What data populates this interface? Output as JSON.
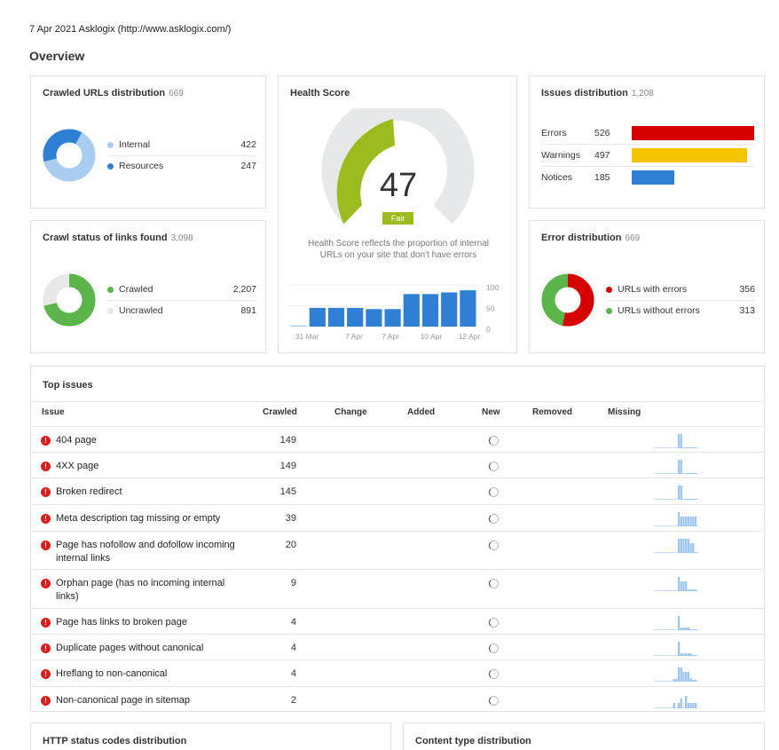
{
  "header": {
    "report_line": "7 Apr 2021 Asklogix (http://www.asklogix.com/)",
    "overview_title": "Overview"
  },
  "crawled_urls": {
    "title": "Crawled URLs distribution",
    "count": "669",
    "items": [
      {
        "label": "Internal",
        "value": "422",
        "color": "#a9cdf0"
      },
      {
        "label": "Resources",
        "value": "247",
        "color": "#2f7fd4"
      }
    ]
  },
  "crawl_status": {
    "title": "Crawl status of links found",
    "count": "3,098",
    "items": [
      {
        "label": "Crawled",
        "value": "2,207",
        "color": "#5bb54b"
      },
      {
        "label": "Uncrawled",
        "value": "891",
        "color": "#e8e8e8"
      }
    ]
  },
  "health": {
    "title": "Health Score",
    "score": "47",
    "rating": "Fair",
    "gauge_color": "#9cbb1f",
    "track_color": "#e6e8ea",
    "description_line1": "Health Score reflects the proportion of internal",
    "description_line2": "URLs on your site that don't have errors",
    "chart_data": {
      "type": "bar",
      "values": [
        3,
        45,
        45,
        45,
        42,
        42,
        78,
        78,
        82,
        87
      ],
      "x_tick_labels": [
        "31 Mar",
        "7 Apr",
        "7 Apr",
        "10 Apr",
        "12 Apr"
      ],
      "y_tick_labels": [
        "100",
        "50",
        "0"
      ],
      "ylim": [
        0,
        100
      ],
      "bar_color": "#2f7fd4"
    }
  },
  "issues_distribution": {
    "title": "Issues distribution",
    "count": "1,208",
    "items": [
      {
        "label": "Errors",
        "value": "526",
        "color": "#d60000",
        "value_num": 526
      },
      {
        "label": "Warnings",
        "value": "497",
        "color": "#f5c500",
        "value_num": 497
      },
      {
        "label": "Notices",
        "value": "185",
        "color": "#2f7fd4",
        "value_num": 185
      }
    ]
  },
  "error_distribution": {
    "title": "Error distribution",
    "count": "669",
    "items": [
      {
        "label": "URLs with errors",
        "value": "356",
        "color": "#d60000"
      },
      {
        "label": "URLs without errors",
        "value": "313",
        "color": "#5bb54b"
      }
    ]
  },
  "top_issues": {
    "title": "Top issues",
    "columns": [
      "Issue",
      "Crawled",
      "Change",
      "Added",
      "New",
      "Removed",
      "Missing"
    ],
    "rows": [
      {
        "issue": "404 page",
        "crawled": "149",
        "spark": [
          0,
          0,
          0,
          0,
          0,
          0,
          0,
          0,
          0,
          0,
          16,
          16,
          0,
          1,
          1,
          1,
          1,
          1
        ]
      },
      {
        "issue": "4XX page",
        "crawled": "149",
        "spark": [
          0,
          0,
          0,
          0,
          0,
          0,
          0,
          0,
          0,
          0,
          16,
          16,
          0,
          1,
          1,
          1,
          1,
          1
        ]
      },
      {
        "issue": "Broken redirect",
        "crawled": "145",
        "spark": [
          0,
          0,
          0,
          0,
          0,
          0,
          0,
          0,
          0,
          0,
          16,
          16,
          0,
          1,
          1,
          1,
          1,
          1
        ]
      },
      {
        "issue": "Meta description tag missing or empty",
        "crawled": "39",
        "spark": [
          0,
          0,
          0,
          0,
          0,
          0,
          0,
          0,
          0,
          0,
          16,
          11,
          11,
          11,
          11,
          11,
          11,
          11
        ]
      },
      {
        "issue": "Page has nofollow and dofollow incoming internal links",
        "crawled": "20",
        "spark": [
          0,
          0,
          0,
          0,
          0,
          0,
          0,
          0,
          0,
          0,
          16,
          16,
          16,
          16,
          16,
          11,
          11,
          1
        ]
      },
      {
        "issue": "Orphan page (has no incoming internal links)",
        "crawled": "9",
        "spark": [
          0,
          0,
          0,
          0,
          0,
          0,
          0,
          0,
          0,
          0,
          16,
          11,
          11,
          11,
          2,
          2,
          2,
          2
        ]
      },
      {
        "issue": "Page has links to broken page",
        "crawled": "4",
        "spark": [
          0,
          0,
          0,
          0,
          0,
          0,
          0,
          0,
          0,
          0,
          16,
          3,
          3,
          3,
          3,
          1,
          1,
          1
        ]
      },
      {
        "issue": "Duplicate pages without canonical",
        "crawled": "4",
        "spark": [
          0,
          0,
          0,
          0,
          0,
          0,
          0,
          0,
          0,
          0,
          16,
          3,
          3,
          3,
          3,
          3,
          1,
          1
        ]
      },
      {
        "issue": "Hreflang to non-canonical",
        "crawled": "4",
        "spark": [
          0,
          0,
          0,
          0,
          0,
          0,
          0,
          0,
          3,
          3,
          16,
          16,
          11,
          11,
          11,
          4,
          2,
          2
        ]
      },
      {
        "issue": "Non-canonical page in sitemap",
        "crawled": "2",
        "spark": [
          0,
          0,
          0,
          0,
          0,
          0,
          0,
          0,
          6,
          0,
          6,
          11,
          0,
          14,
          6,
          6,
          6,
          6
        ]
      }
    ]
  },
  "bottom": {
    "http_title": "HTTP status codes distribution",
    "content_title": "Content type distribution"
  }
}
